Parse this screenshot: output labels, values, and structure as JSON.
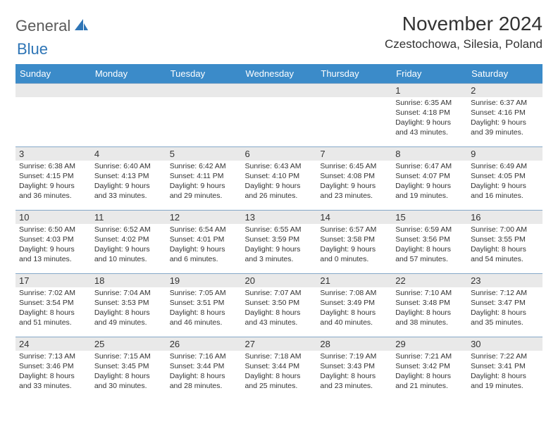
{
  "logo": {
    "text1": "General",
    "text2": "Blue"
  },
  "title": "November 2024",
  "location": "Czestochowa, Silesia, Poland",
  "colors": {
    "header_bg": "#3b8bc9",
    "header_text": "#ffffff",
    "daynum_bg": "#e9e9e9",
    "border": "#85a8c8",
    "text": "#333333",
    "logo_gray": "#5a5a5a",
    "logo_blue": "#2e75b6"
  },
  "dow": [
    "Sunday",
    "Monday",
    "Tuesday",
    "Wednesday",
    "Thursday",
    "Friday",
    "Saturday"
  ],
  "weeks": [
    [
      null,
      null,
      null,
      null,
      null,
      {
        "n": "1",
        "sr": "6:35 AM",
        "ss": "4:18 PM",
        "dl": "9 hours and 43 minutes."
      },
      {
        "n": "2",
        "sr": "6:37 AM",
        "ss": "4:16 PM",
        "dl": "9 hours and 39 minutes."
      }
    ],
    [
      {
        "n": "3",
        "sr": "6:38 AM",
        "ss": "4:15 PM",
        "dl": "9 hours and 36 minutes."
      },
      {
        "n": "4",
        "sr": "6:40 AM",
        "ss": "4:13 PM",
        "dl": "9 hours and 33 minutes."
      },
      {
        "n": "5",
        "sr": "6:42 AM",
        "ss": "4:11 PM",
        "dl": "9 hours and 29 minutes."
      },
      {
        "n": "6",
        "sr": "6:43 AM",
        "ss": "4:10 PM",
        "dl": "9 hours and 26 minutes."
      },
      {
        "n": "7",
        "sr": "6:45 AM",
        "ss": "4:08 PM",
        "dl": "9 hours and 23 minutes."
      },
      {
        "n": "8",
        "sr": "6:47 AM",
        "ss": "4:07 PM",
        "dl": "9 hours and 19 minutes."
      },
      {
        "n": "9",
        "sr": "6:49 AM",
        "ss": "4:05 PM",
        "dl": "9 hours and 16 minutes."
      }
    ],
    [
      {
        "n": "10",
        "sr": "6:50 AM",
        "ss": "4:03 PM",
        "dl": "9 hours and 13 minutes."
      },
      {
        "n": "11",
        "sr": "6:52 AM",
        "ss": "4:02 PM",
        "dl": "9 hours and 10 minutes."
      },
      {
        "n": "12",
        "sr": "6:54 AM",
        "ss": "4:01 PM",
        "dl": "9 hours and 6 minutes."
      },
      {
        "n": "13",
        "sr": "6:55 AM",
        "ss": "3:59 PM",
        "dl": "9 hours and 3 minutes."
      },
      {
        "n": "14",
        "sr": "6:57 AM",
        "ss": "3:58 PM",
        "dl": "9 hours and 0 minutes."
      },
      {
        "n": "15",
        "sr": "6:59 AM",
        "ss": "3:56 PM",
        "dl": "8 hours and 57 minutes."
      },
      {
        "n": "16",
        "sr": "7:00 AM",
        "ss": "3:55 PM",
        "dl": "8 hours and 54 minutes."
      }
    ],
    [
      {
        "n": "17",
        "sr": "7:02 AM",
        "ss": "3:54 PM",
        "dl": "8 hours and 51 minutes."
      },
      {
        "n": "18",
        "sr": "7:04 AM",
        "ss": "3:53 PM",
        "dl": "8 hours and 49 minutes."
      },
      {
        "n": "19",
        "sr": "7:05 AM",
        "ss": "3:51 PM",
        "dl": "8 hours and 46 minutes."
      },
      {
        "n": "20",
        "sr": "7:07 AM",
        "ss": "3:50 PM",
        "dl": "8 hours and 43 minutes."
      },
      {
        "n": "21",
        "sr": "7:08 AM",
        "ss": "3:49 PM",
        "dl": "8 hours and 40 minutes."
      },
      {
        "n": "22",
        "sr": "7:10 AM",
        "ss": "3:48 PM",
        "dl": "8 hours and 38 minutes."
      },
      {
        "n": "23",
        "sr": "7:12 AM",
        "ss": "3:47 PM",
        "dl": "8 hours and 35 minutes."
      }
    ],
    [
      {
        "n": "24",
        "sr": "7:13 AM",
        "ss": "3:46 PM",
        "dl": "8 hours and 33 minutes."
      },
      {
        "n": "25",
        "sr": "7:15 AM",
        "ss": "3:45 PM",
        "dl": "8 hours and 30 minutes."
      },
      {
        "n": "26",
        "sr": "7:16 AM",
        "ss": "3:44 PM",
        "dl": "8 hours and 28 minutes."
      },
      {
        "n": "27",
        "sr": "7:18 AM",
        "ss": "3:44 PM",
        "dl": "8 hours and 25 minutes."
      },
      {
        "n": "28",
        "sr": "7:19 AM",
        "ss": "3:43 PM",
        "dl": "8 hours and 23 minutes."
      },
      {
        "n": "29",
        "sr": "7:21 AM",
        "ss": "3:42 PM",
        "dl": "8 hours and 21 minutes."
      },
      {
        "n": "30",
        "sr": "7:22 AM",
        "ss": "3:41 PM",
        "dl": "8 hours and 19 minutes."
      }
    ]
  ],
  "labels": {
    "sunrise": "Sunrise:",
    "sunset": "Sunset:",
    "daylight": "Daylight:"
  }
}
